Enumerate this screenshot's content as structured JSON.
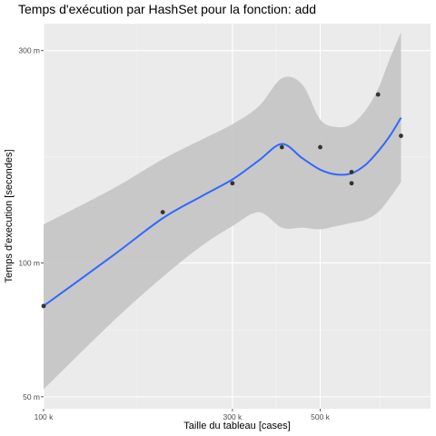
{
  "chart_data": {
    "type": "scatter",
    "title": "Temps d'exécution par HashSet pour la fonction: add",
    "xlabel": "Taille du tableau [cases]",
    "ylabel": "Temps d'execution [secondes]",
    "x_scale": "log",
    "y_scale": "log",
    "xlim": [
      100000,
      950000
    ],
    "ylim": [
      47000,
      345000
    ],
    "x_ticks": [
      {
        "value": 100000,
        "label": "100 k"
      },
      {
        "value": 300000,
        "label": "300 k"
      },
      {
        "value": 500000,
        "label": "500 k"
      }
    ],
    "x_minor_ticks": [
      173000,
      387000,
      707000
    ],
    "y_ticks": [
      {
        "value": 50000,
        "label": "50 m"
      },
      {
        "value": 100000,
        "label": "100 m"
      },
      {
        "value": 300000,
        "label": "300 m"
      }
    ],
    "y_minor_ticks": [
      70700,
      173000
    ],
    "points": [
      {
        "x": 100000,
        "y": 80000
      },
      {
        "x": 200000,
        "y": 130000
      },
      {
        "x": 300000,
        "y": 151000
      },
      {
        "x": 400000,
        "y": 182000
      },
      {
        "x": 500000,
        "y": 182000
      },
      {
        "x": 600000,
        "y": 151000
      },
      {
        "x": 600000,
        "y": 160000
      },
      {
        "x": 700000,
        "y": 239000
      },
      {
        "x": 800000,
        "y": 193000
      }
    ],
    "smooth": {
      "x": [
        100000,
        150000,
        200000,
        250000,
        300000,
        350000,
        400000,
        450000,
        500000,
        550000,
        600000,
        650000,
        700000,
        750000,
        800000
      ],
      "y": [
        80000,
        104000,
        126000,
        141000,
        154000,
        170000,
        185000,
        172000,
        162000,
        158000,
        159000,
        166000,
        178000,
        193000,
        212000
      ],
      "lower": [
        52000,
        74000,
        93000,
        109000,
        121000,
        130000,
        120000,
        120000,
        119000,
        121000,
        123000,
        125000,
        130000,
        140000,
        152000
      ],
      "upper": [
        122000,
        147000,
        171000,
        189000,
        205000,
        225000,
        260000,
        252000,
        210000,
        202000,
        205000,
        220000,
        246000,
        288000,
        330000
      ]
    },
    "colors": {
      "panel": "#ebebeb",
      "grid_major": "#ffffff",
      "grid_minor": "#f4f4f4",
      "point": "#333333",
      "line": "#3366ff",
      "band": "#c4c4c4"
    },
    "grid": true,
    "legend": "none"
  }
}
